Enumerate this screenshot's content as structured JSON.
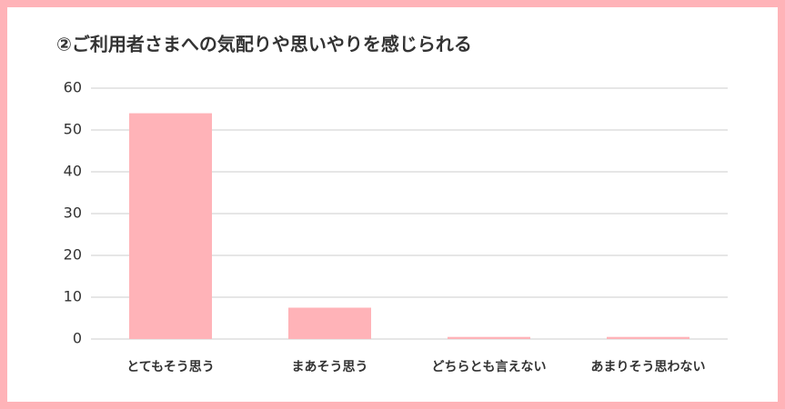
{
  "chart_data": {
    "type": "bar",
    "title": "②ご利用者さまへの気配りや思いやりを感じられる",
    "categories": [
      "とてもそう思う",
      "まあそう思う",
      "どちらとも言えない",
      "あまりそう思わない"
    ],
    "values": [
      54,
      7.5,
      0.5,
      0.5
    ],
    "color": "#ffb3b8",
    "ylim": [
      0,
      60
    ],
    "yticks": [
      0,
      10,
      20,
      30,
      40,
      50,
      60
    ],
    "grid": true
  }
}
